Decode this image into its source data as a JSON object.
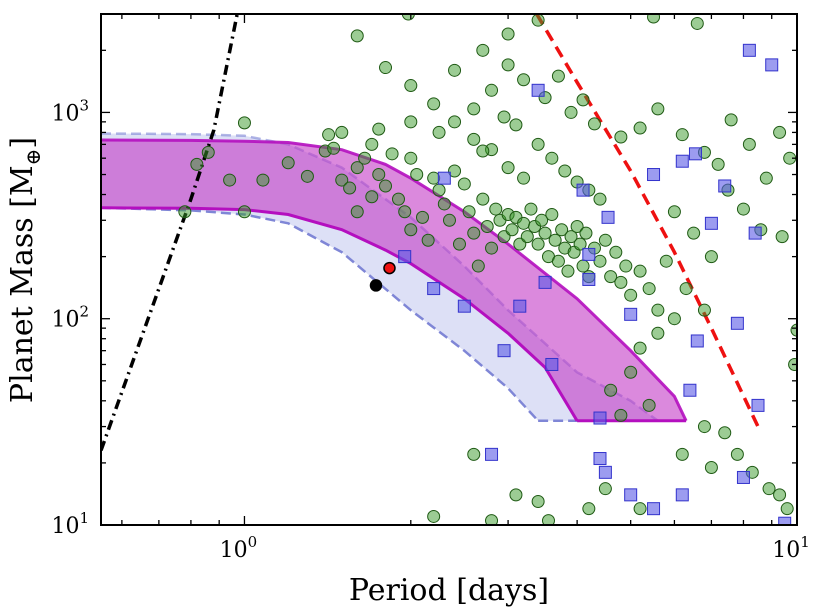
{
  "chart_data": {
    "type": "scatter",
    "xlabel": "Period [days]",
    "ylabel": "Planet Mass [M",
    "ylabel_subscript": "⊕",
    "ylabel_close": "]",
    "xscale": "log",
    "yscale": "log",
    "xlim": [
      0.55,
      10
    ],
    "ylim": [
      10,
      3000
    ],
    "x_ticks": [
      {
        "value": 1,
        "base": "10",
        "exp": "0"
      },
      {
        "value": 10,
        "base": "10",
        "exp": "1"
      }
    ],
    "y_ticks": [
      {
        "value": 10,
        "base": "10",
        "exp": "1"
      },
      {
        "value": 100,
        "base": "10",
        "exp": "2"
      },
      {
        "value": 1000,
        "base": "10",
        "exp": "3"
      }
    ],
    "grid": false,
    "colors": {
      "green": "#3a9a2a",
      "blue": "#5a5ae6",
      "magenta": "#b81ec0",
      "lightblue": "#9ea6e6",
      "red": "#ee1111"
    },
    "bands": [
      {
        "color": "#9ea6e6",
        "upper": [
          [
            0.55,
            790
          ],
          [
            0.8,
            785
          ],
          [
            1.0,
            770
          ],
          [
            1.2,
            700
          ],
          [
            1.5,
            540
          ],
          [
            2.0,
            310
          ],
          [
            2.5,
            180
          ],
          [
            3.0,
            110
          ],
          [
            4.0,
            55
          ],
          [
            5.0,
            40
          ],
          [
            5.6,
            32
          ]
        ],
        "lower": [
          [
            0.55,
            345
          ],
          [
            0.8,
            335
          ],
          [
            1.0,
            320
          ],
          [
            1.2,
            290
          ],
          [
            1.5,
            210
          ],
          [
            2.0,
            110
          ],
          [
            2.5,
            70
          ],
          [
            3.0,
            46
          ],
          [
            3.4,
            32
          ]
        ]
      },
      {
        "color": "#c33ac7",
        "upper": [
          [
            0.55,
            735
          ],
          [
            0.8,
            732
          ],
          [
            1.0,
            725
          ],
          [
            1.2,
            715
          ],
          [
            1.5,
            660
          ],
          [
            1.8,
            560
          ],
          [
            2.0,
            480
          ],
          [
            2.5,
            330
          ],
          [
            3.0,
            230
          ],
          [
            4.0,
            125
          ],
          [
            5.0,
            70
          ],
          [
            6.0,
            42
          ],
          [
            6.3,
            32
          ]
        ],
        "lower": [
          [
            0.55,
            345
          ],
          [
            0.8,
            343
          ],
          [
            1.0,
            338
          ],
          [
            1.2,
            320
          ],
          [
            1.5,
            270
          ],
          [
            1.8,
            215
          ],
          [
            2.0,
            185
          ],
          [
            2.5,
            125
          ],
          [
            3.0,
            85
          ],
          [
            3.5,
            58
          ],
          [
            4.0,
            32
          ]
        ]
      }
    ],
    "lines": [
      {
        "name": "",
        "style": "dashdot",
        "color": "#000000",
        "points": [
          [
            0.55,
            23
          ],
          [
            0.7,
            140
          ],
          [
            0.8,
            380
          ],
          [
            0.88,
            820
          ],
          [
            0.97,
            3000
          ]
        ]
      },
      {
        "name": "",
        "style": "dashed",
        "color": "#ee1111",
        "points": [
          [
            3.38,
            3000
          ],
          [
            4.0,
            1400
          ],
          [
            5.0,
            520
          ],
          [
            6.0,
            210
          ],
          [
            7.0,
            90
          ],
          [
            8.5,
            30
          ]
        ]
      }
    ],
    "series": [
      {
        "marker": "circle",
        "color": "#3a9a2a",
        "points": [
          [
            0.78,
            330
          ],
          [
            0.82,
            560
          ],
          [
            0.86,
            640
          ],
          [
            0.94,
            470
          ],
          [
            1.0,
            890
          ],
          [
            1.0,
            330
          ],
          [
            1.08,
            470
          ],
          [
            1.2,
            570
          ],
          [
            1.3,
            490
          ],
          [
            1.4,
            650
          ],
          [
            1.42,
            780
          ],
          [
            1.45,
            670
          ],
          [
            1.5,
            470
          ],
          [
            1.55,
            430
          ],
          [
            1.6,
            540
          ],
          [
            1.6,
            330
          ],
          [
            1.65,
            600
          ],
          [
            1.7,
            700
          ],
          [
            1.7,
            390
          ],
          [
            1.75,
            500
          ],
          [
            1.8,
            440
          ],
          [
            1.85,
            630
          ],
          [
            1.9,
            380
          ],
          [
            1.95,
            330
          ],
          [
            2.0,
            600
          ],
          [
            2.0,
            270
          ],
          [
            2.05,
            500
          ],
          [
            2.1,
            310
          ],
          [
            2.15,
            240
          ],
          [
            2.2,
            480
          ],
          [
            2.25,
            420
          ],
          [
            2.3,
            360
          ],
          [
            2.35,
            300
          ],
          [
            2.4,
            520
          ],
          [
            2.45,
            230
          ],
          [
            2.5,
            450
          ],
          [
            2.55,
            330
          ],
          [
            2.6,
            260
          ],
          [
            2.65,
            180
          ],
          [
            2.7,
            380
          ],
          [
            2.75,
            280
          ],
          [
            2.8,
            220
          ],
          [
            2.85,
            340
          ],
          [
            2.9,
            300
          ],
          [
            2.95,
            250
          ],
          [
            3.0,
            320
          ],
          [
            3.05,
            270
          ],
          [
            3.1,
            310
          ],
          [
            3.15,
            230
          ],
          [
            3.2,
            290
          ],
          [
            3.25,
            250
          ],
          [
            3.3,
            340
          ],
          [
            3.35,
            280
          ],
          [
            3.4,
            230
          ],
          [
            3.45,
            300
          ],
          [
            3.5,
            260
          ],
          [
            3.55,
            200
          ],
          [
            3.6,
            320
          ],
          [
            3.65,
            240
          ],
          [
            3.7,
            190
          ],
          [
            3.75,
            270
          ],
          [
            3.8,
            220
          ],
          [
            3.85,
            170
          ],
          [
            3.9,
            250
          ],
          [
            3.95,
            210
          ],
          [
            4.0,
            280
          ],
          [
            4.05,
            230
          ],
          [
            4.1,
            180
          ],
          [
            4.15,
            260
          ],
          [
            4.2,
            160
          ],
          [
            4.3,
            220
          ],
          [
            4.4,
            190
          ],
          [
            4.5,
            240
          ],
          [
            4.6,
            160
          ],
          [
            4.7,
            210
          ],
          [
            4.8,
            150
          ],
          [
            4.9,
            180
          ],
          [
            5.0,
            130
          ],
          [
            5.2,
            170
          ],
          [
            5.4,
            140
          ],
          [
            5.6,
            110
          ],
          [
            2.6,
            740
          ],
          [
            2.8,
            660
          ],
          [
            3.0,
            540
          ],
          [
            3.2,
            480
          ],
          [
            3.4,
            700
          ],
          [
            3.6,
            600
          ],
          [
            3.8,
            520
          ],
          [
            4.0,
            460
          ],
          [
            4.2,
            420
          ],
          [
            4.4,
            380
          ],
          [
            2.4,
            900
          ],
          [
            2.6,
            1040
          ],
          [
            2.8,
            1280
          ],
          [
            3.2,
            1440
          ],
          [
            3.5,
            1180
          ],
          [
            3.9,
            1000
          ],
          [
            4.3,
            880
          ],
          [
            4.8,
            760
          ],
          [
            5.2,
            840
          ],
          [
            5.6,
            1040
          ],
          [
            6.2,
            780
          ],
          [
            6.8,
            640
          ],
          [
            7.2,
            560
          ],
          [
            7.6,
            920
          ],
          [
            8.2,
            700
          ],
          [
            8.8,
            480
          ],
          [
            9.3,
            800
          ],
          [
            9.7,
            600
          ],
          [
            9.4,
            250
          ],
          [
            7.5,
            420
          ],
          [
            8.0,
            340
          ],
          [
            8.6,
            270
          ],
          [
            6.0,
            330
          ],
          [
            6.5,
            260
          ],
          [
            7.0,
            200
          ],
          [
            5.8,
            190
          ],
          [
            6.3,
            140
          ],
          [
            6.8,
            110
          ],
          [
            6.0,
            100
          ],
          [
            5.6,
            85
          ],
          [
            5.2,
            72
          ],
          [
            5.0,
            55
          ],
          [
            4.6,
            45
          ],
          [
            4.8,
            34
          ],
          [
            5.4,
            38
          ],
          [
            6.8,
            30
          ],
          [
            7.4,
            28
          ],
          [
            7.8,
            22
          ],
          [
            8.3,
            18
          ],
          [
            8.9,
            15
          ],
          [
            9.6,
            12
          ],
          [
            5.2,
            12
          ],
          [
            3.55,
            10.5
          ],
          [
            4.2,
            12
          ],
          [
            2.8,
            10.5
          ],
          [
            3.1,
            14
          ],
          [
            2.2,
            11
          ],
          [
            2.6,
            22
          ],
          [
            3.4,
            13
          ],
          [
            4.5,
            15
          ],
          [
            6.2,
            22
          ],
          [
            7.0,
            19
          ],
          [
            9.3,
            14
          ],
          [
            10.0,
            88
          ],
          [
            9.9,
            60
          ],
          [
            3.0,
            1700
          ],
          [
            3.4,
            2800
          ],
          [
            5.5,
            2900
          ],
          [
            6.6,
            2700
          ],
          [
            1.98,
            3000
          ],
          [
            1.6,
            2350
          ],
          [
            1.8,
            1650
          ],
          [
            2.0,
            1350
          ],
          [
            2.2,
            1100
          ],
          [
            2.4,
            1600
          ],
          [
            2.7,
            2000
          ],
          [
            3.0,
            2400
          ],
          [
            3.7,
            1500
          ],
          [
            4.1,
            1150
          ],
          [
            1.5,
            800
          ],
          [
            1.75,
            830
          ],
          [
            2.0,
            900
          ],
          [
            2.25,
            800
          ],
          [
            2.7,
            650
          ],
          [
            2.95,
            950
          ],
          [
            3.1,
            870
          ]
        ]
      },
      {
        "marker": "square",
        "color": "#5a5ae6",
        "points": [
          [
            1.95,
            200
          ],
          [
            2.2,
            140
          ],
          [
            2.3,
            480
          ],
          [
            2.5,
            115
          ],
          [
            2.95,
            70
          ],
          [
            3.15,
            115
          ],
          [
            3.4,
            1280
          ],
          [
            3.5,
            150
          ],
          [
            3.6,
            60
          ],
          [
            4.1,
            420
          ],
          [
            4.2,
            155
          ],
          [
            4.2,
            205
          ],
          [
            4.4,
            33
          ],
          [
            4.55,
            310
          ],
          [
            5.0,
            105
          ],
          [
            5.5,
            500
          ],
          [
            6.2,
            580
          ],
          [
            6.4,
            45
          ],
          [
            6.55,
            630
          ],
          [
            6.6,
            78
          ],
          [
            7.0,
            290
          ],
          [
            7.4,
            440
          ],
          [
            7.8,
            95
          ],
          [
            8.2,
            2000
          ],
          [
            8.4,
            260
          ],
          [
            8.5,
            38
          ],
          [
            8.0,
            17
          ],
          [
            9.0,
            1700
          ],
          [
            9.5,
            10.2
          ],
          [
            2.8,
            22
          ],
          [
            4.4,
            21
          ],
          [
            4.5,
            18
          ],
          [
            5.0,
            14
          ],
          [
            5.5,
            12
          ],
          [
            6.2,
            14
          ]
        ]
      },
      {
        "marker": "circle-solid",
        "color": "#000000",
        "points": [
          [
            1.73,
            145
          ]
        ]
      },
      {
        "marker": "circle-solid",
        "color": "#ee1111",
        "points": [
          [
            1.83,
            176
          ]
        ]
      }
    ]
  }
}
